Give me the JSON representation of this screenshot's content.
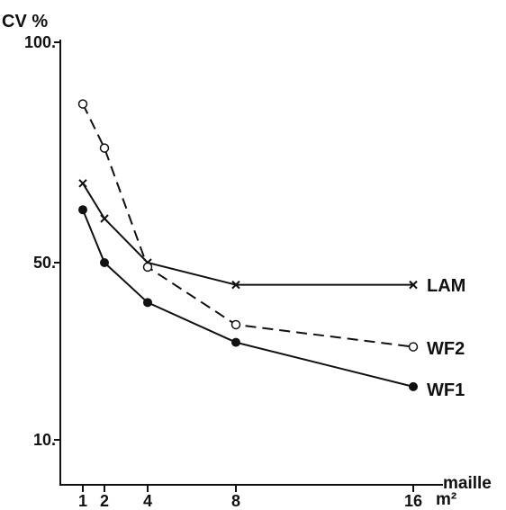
{
  "chart_data": {
    "type": "line",
    "ylabel": "CV %",
    "xlabel": "maille",
    "xunit": "m²",
    "ylim": [
      10,
      100
    ],
    "y_ticks": [
      {
        "value": 10,
        "label": "10."
      },
      {
        "value": 50,
        "label": "50."
      },
      {
        "value": 100,
        "label": "100."
      }
    ],
    "x_ticks": [
      {
        "value": 1,
        "label": "1"
      },
      {
        "value": 2,
        "label": "2"
      },
      {
        "value": 4,
        "label": "4"
      },
      {
        "value": 8,
        "label": "8"
      },
      {
        "value": 16,
        "label": "16"
      }
    ],
    "grid": false,
    "legend": "labels at line ends (right)",
    "series": [
      {
        "name": "LAM",
        "marker": "cross",
        "dash": false,
        "x": [
          1,
          2,
          4,
          8,
          16
        ],
        "y": [
          68,
          60,
          50,
          45,
          45
        ]
      },
      {
        "name": "WF2",
        "marker": "open-circle",
        "dash": true,
        "x": [
          1,
          2,
          4,
          8,
          16
        ],
        "y": [
          86,
          76,
          49,
          36,
          31
        ]
      },
      {
        "name": "WF1",
        "marker": "filled-circle",
        "dash": false,
        "x": [
          1,
          2,
          4,
          8,
          16
        ],
        "y": [
          62,
          50,
          41,
          32,
          22
        ]
      }
    ]
  }
}
